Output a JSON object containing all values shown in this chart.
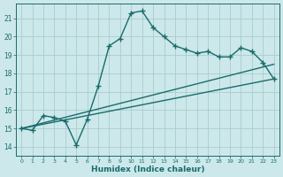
{
  "xlabel": "Humidex (Indice chaleur)",
  "xlim": [
    -0.5,
    23.5
  ],
  "ylim": [
    13.5,
    21.8
  ],
  "xticks": [
    0,
    1,
    2,
    3,
    4,
    5,
    6,
    7,
    8,
    9,
    10,
    11,
    12,
    13,
    14,
    15,
    16,
    17,
    18,
    19,
    20,
    21,
    22,
    23
  ],
  "yticks": [
    14,
    15,
    16,
    17,
    18,
    19,
    20,
    21
  ],
  "bg_color": "#cce8eb",
  "grid_color": "#aacccc",
  "line_color": "#1a6b6b",
  "curve1_x": [
    0,
    1,
    2,
    3,
    4,
    5,
    6,
    7,
    8,
    9,
    10,
    11,
    12,
    13,
    14,
    15,
    16,
    17,
    18,
    19,
    20,
    21,
    22,
    23
  ],
  "curve1_y": [
    15.0,
    14.9,
    15.7,
    15.6,
    15.4,
    14.1,
    15.5,
    17.3,
    19.5,
    19.9,
    21.3,
    21.4,
    20.5,
    20.0,
    19.5,
    19.3,
    19.1,
    19.2,
    18.9,
    18.9,
    19.4,
    19.2,
    18.6,
    17.7
  ],
  "curve2_x": [
    0,
    23
  ],
  "curve2_y": [
    15.0,
    17.7
  ],
  "curve3_x": [
    0,
    23
  ],
  "curve3_y": [
    15.0,
    18.5
  ]
}
